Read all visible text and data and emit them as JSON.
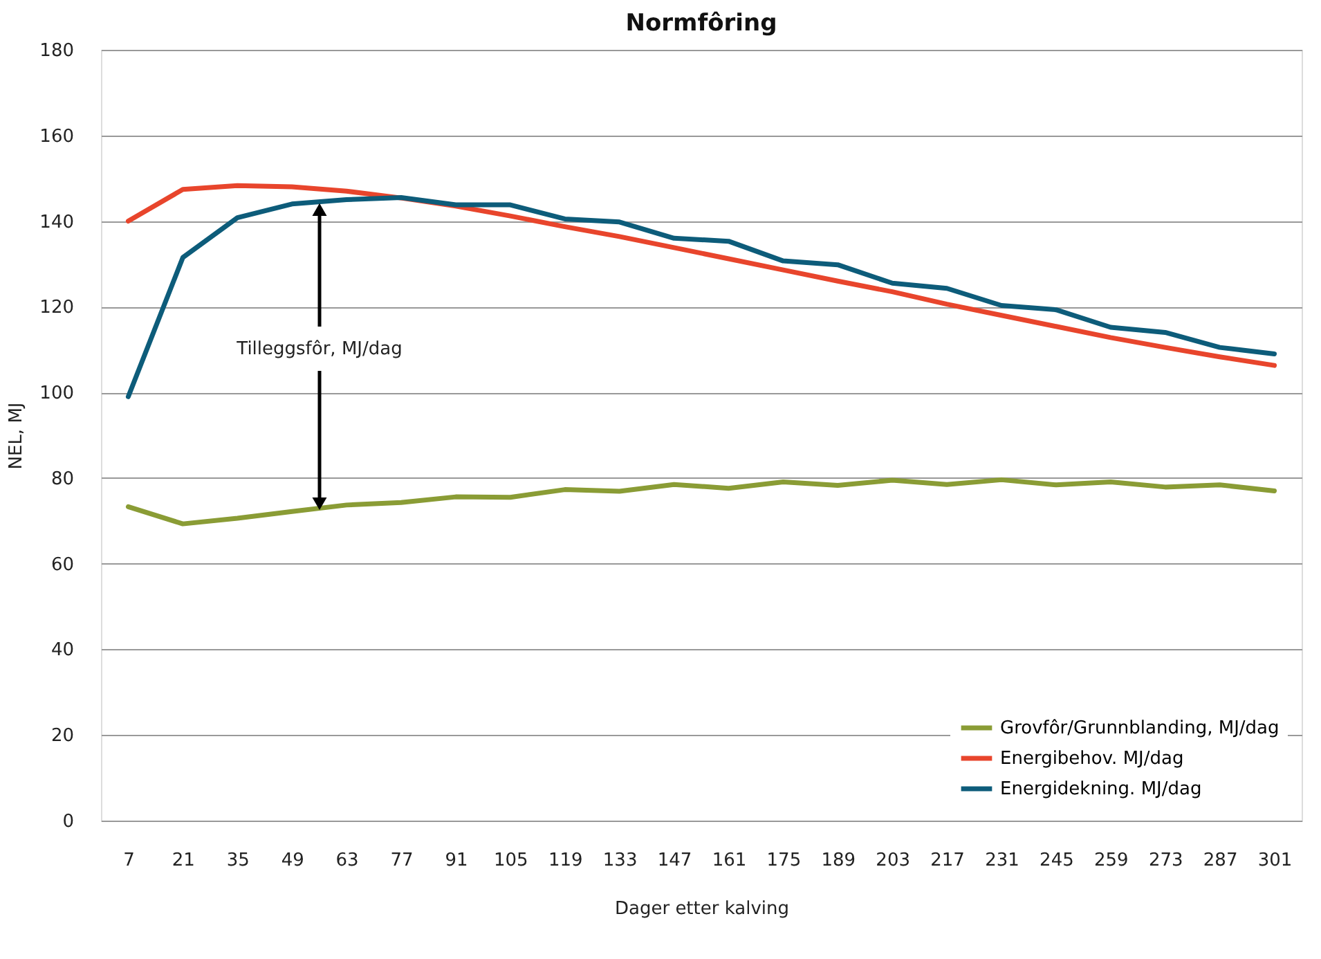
{
  "chart_data": {
    "type": "line",
    "title": "Normfôring",
    "xlabel": "Dager etter kalving",
    "ylabel": "NEL, MJ",
    "categories": [
      "7",
      "21",
      "35",
      "49",
      "63",
      "77",
      "91",
      "105",
      "119",
      "133",
      "147",
      "161",
      "175",
      "189",
      "203",
      "217",
      "231",
      "245",
      "259",
      "273",
      "287",
      "301"
    ],
    "series": [
      {
        "name": "Grovfôr/Grunnblanding, MJ/dag",
        "color": "#8a9c35",
        "values": [
          73.3,
          69.3,
          70.6,
          72.2,
          73.7,
          74.3,
          75.6,
          75.5,
          77.3,
          76.9,
          78.5,
          77.6,
          79.1,
          78.3,
          79.5,
          78.5,
          79.6,
          78.4,
          79.1,
          77.9,
          78.4,
          77.0
        ]
      },
      {
        "name": "Energibehov. MJ/dag",
        "color": "#e8452c",
        "values": [
          140,
          147.4,
          148.3,
          148,
          147,
          145.4,
          143.5,
          141.2,
          138.7,
          136.4,
          133.8,
          131.2,
          128.6,
          126,
          123.5,
          120.6,
          118,
          115.4,
          112.8,
          110.5,
          108.3,
          106.3
        ]
      },
      {
        "name": "Energidekning. MJ/dag",
        "color": "#0d5c7a",
        "values": [
          99,
          131.5,
          140.8,
          144,
          145,
          145.5,
          143.8,
          143.8,
          140.5,
          139.8,
          136,
          135.3,
          130.7,
          129.8,
          125.5,
          124.3,
          120.3,
          119.3,
          115.2,
          114,
          110.5,
          109
        ]
      }
    ],
    "annotations": [
      {
        "text": "Tilleggsfôr, MJ/dag",
        "y": 144
      }
    ],
    "ylim": [
      0,
      180
    ],
    "yticks": [
      0,
      20,
      40,
      60,
      80,
      100,
      120,
      140,
      160,
      180
    ],
    "grid": "y",
    "legend": "bottom right",
    "line_style": "solid"
  }
}
